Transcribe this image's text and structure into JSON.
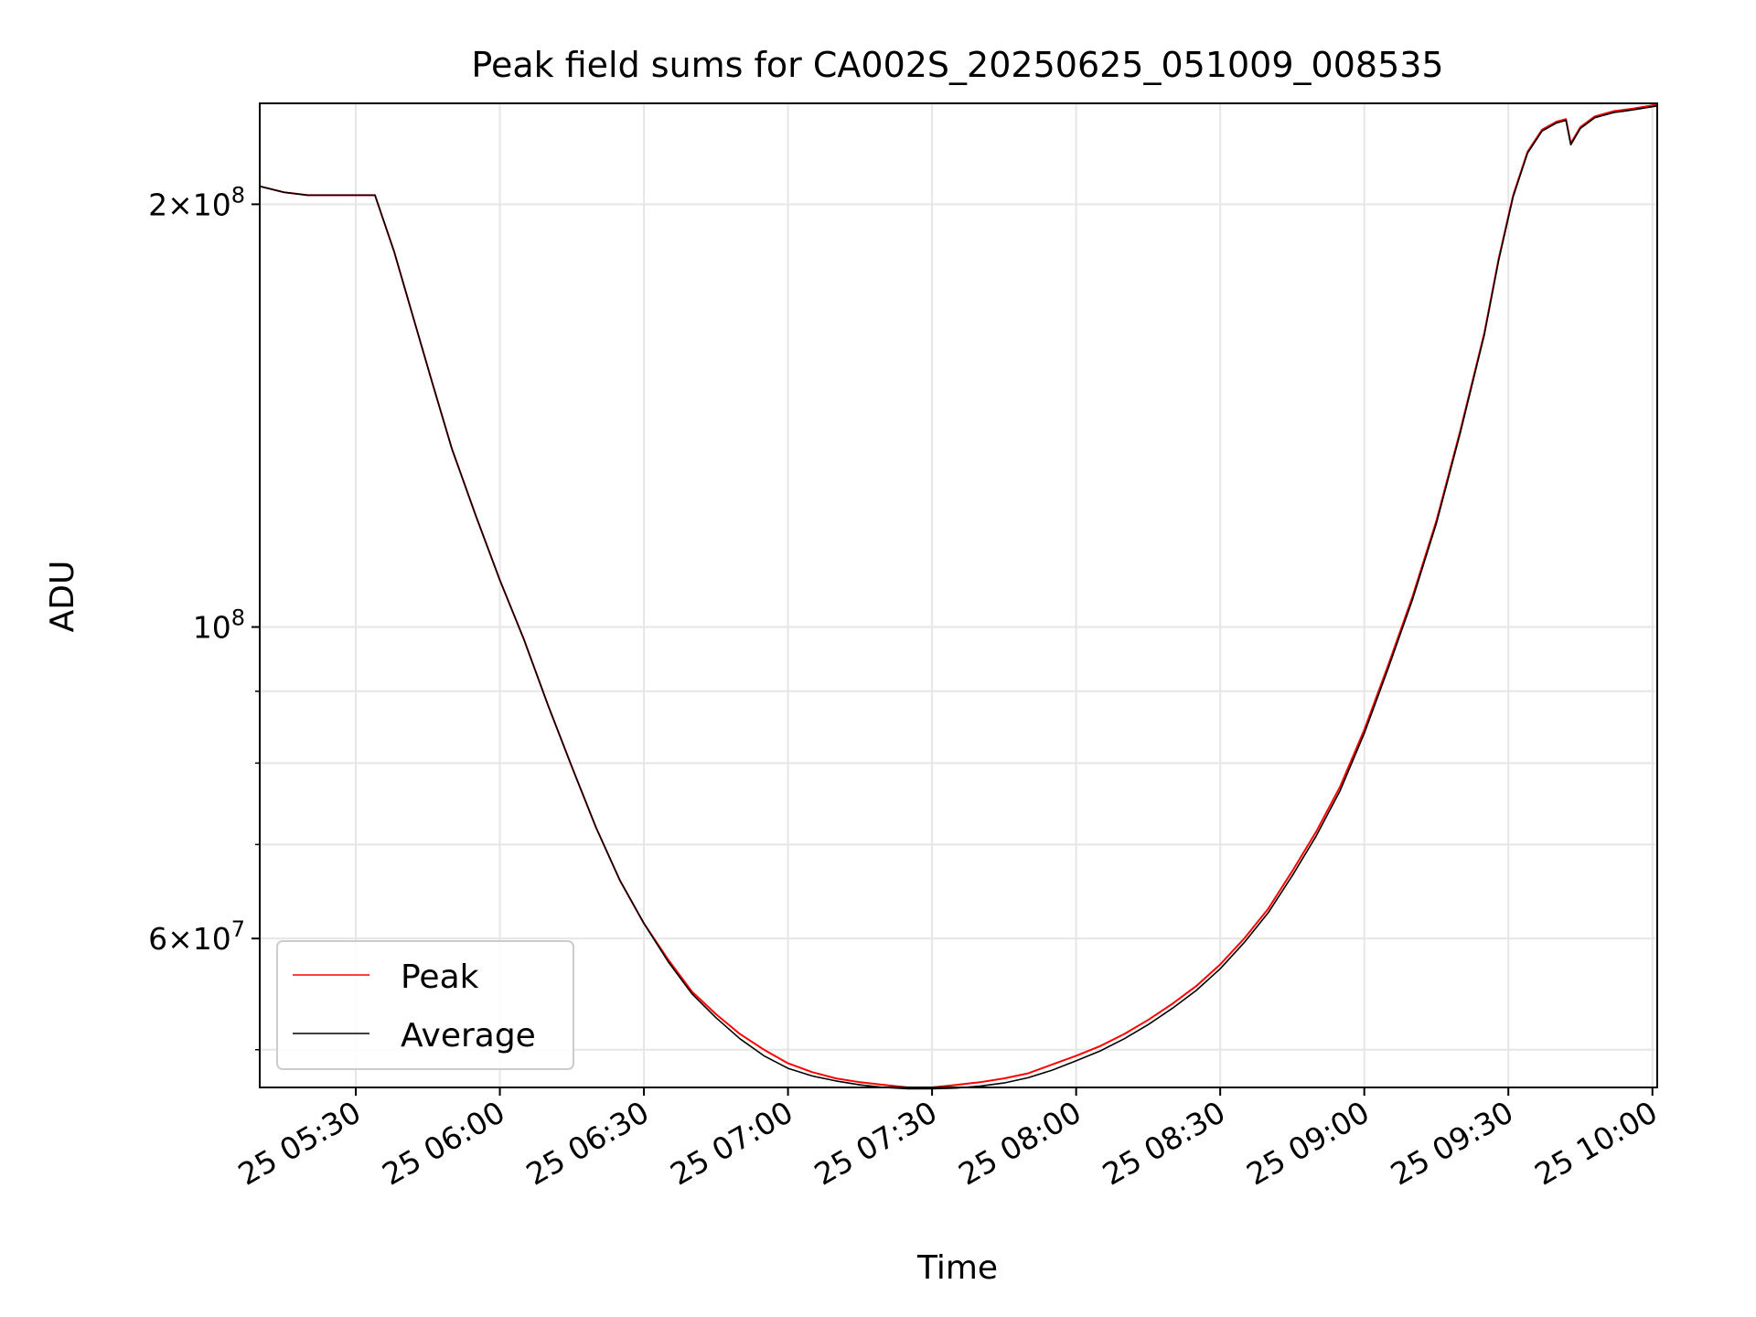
{
  "chart_data": {
    "type": "line",
    "title": "Peak field sums for CA002S_20250625_051009_008535",
    "xlabel": "Time",
    "ylabel": "ADU",
    "yscale": "log",
    "ylim": [
      47000000,
      236000000
    ],
    "xlim": [
      "2025-06-25 05:10:00",
      "2025-06-25 10:01:00"
    ],
    "grid": true,
    "legend": "lower-left",
    "x_tick_labels": [
      {
        "t": "2025-06-25 05:30",
        "label": "25 05:30"
      },
      {
        "t": "2025-06-25 06:00",
        "label": "25 06:00"
      },
      {
        "t": "2025-06-25 06:30",
        "label": "25 06:30"
      },
      {
        "t": "2025-06-25 07:00",
        "label": "25 07:00"
      },
      {
        "t": "2025-06-25 07:30",
        "label": "25 07:30"
      },
      {
        "t": "2025-06-25 08:00",
        "label": "25 08:00"
      },
      {
        "t": "2025-06-25 08:30",
        "label": "25 08:30"
      },
      {
        "t": "2025-06-25 09:00",
        "label": "25 09:00"
      },
      {
        "t": "2025-06-25 09:30",
        "label": "25 09:30"
      },
      {
        "t": "2025-06-25 10:00",
        "label": "25 10:00"
      }
    ],
    "y_major_ticks": [
      {
        "value": 200000000,
        "mantissa": "2",
        "exponent": "8"
      },
      {
        "value": 100000000,
        "mantissa": "",
        "exponent": "8"
      },
      {
        "value": 60000000,
        "mantissa": "6",
        "exponent": "7"
      }
    ],
    "y_minor_ticks": [
      50000000,
      70000000,
      80000000,
      90000000
    ],
    "series": [
      {
        "name": "Peak",
        "color": "#ff0000",
        "x": [
          "2025-06-25 05:10",
          "2025-06-25 05:15",
          "2025-06-25 05:20",
          "2025-06-25 05:25",
          "2025-06-25 05:30",
          "2025-06-25 05:34",
          "2025-06-25 05:38",
          "2025-06-25 05:42",
          "2025-06-25 05:46",
          "2025-06-25 05:50",
          "2025-06-25 05:55",
          "2025-06-25 06:00",
          "2025-06-25 06:05",
          "2025-06-25 06:10",
          "2025-06-25 06:15",
          "2025-06-25 06:20",
          "2025-06-25 06:25",
          "2025-06-25 06:30",
          "2025-06-25 06:35",
          "2025-06-25 06:40",
          "2025-06-25 06:45",
          "2025-06-25 06:50",
          "2025-06-25 06:55",
          "2025-06-25 07:00",
          "2025-06-25 07:05",
          "2025-06-25 07:10",
          "2025-06-25 07:15",
          "2025-06-25 07:20",
          "2025-06-25 07:25",
          "2025-06-25 07:30",
          "2025-06-25 07:35",
          "2025-06-25 07:40",
          "2025-06-25 07:45",
          "2025-06-25 07:50",
          "2025-06-25 07:55",
          "2025-06-25 08:00",
          "2025-06-25 08:05",
          "2025-06-25 08:10",
          "2025-06-25 08:15",
          "2025-06-25 08:20",
          "2025-06-25 08:25",
          "2025-06-25 08:30",
          "2025-06-25 08:35",
          "2025-06-25 08:40",
          "2025-06-25 08:45",
          "2025-06-25 08:50",
          "2025-06-25 08:55",
          "2025-06-25 09:00",
          "2025-06-25 09:05",
          "2025-06-25 09:10",
          "2025-06-25 09:15",
          "2025-06-25 09:20",
          "2025-06-25 09:25",
          "2025-06-25 09:28",
          "2025-06-25 09:31",
          "2025-06-25 09:34",
          "2025-06-25 09:37",
          "2025-06-25 09:40",
          "2025-06-25 09:42",
          "2025-06-25 09:43",
          "2025-06-25 09:45",
          "2025-06-25 09:48",
          "2025-06-25 09:52",
          "2025-06-25 09:56",
          "2025-06-25 10:01"
        ],
        "y": [
          206000000,
          204000000,
          203000000,
          203000000,
          203000000,
          203000000,
          185000000,
          166000000,
          149000000,
          134000000,
          120000000,
          108000000,
          98000000,
          88000000,
          79500000,
          72000000,
          66000000,
          61500000,
          58000000,
          55000000,
          53000000,
          51300000,
          50000000,
          48900000,
          48200000,
          47700000,
          47400000,
          47200000,
          47000000,
          47000000,
          47200000,
          47400000,
          47700000,
          48100000,
          48800000,
          49500000,
          50300000,
          51300000,
          52500000,
          53900000,
          55500000,
          57500000,
          60000000,
          63000000,
          67000000,
          71500000,
          77000000,
          84500000,
          94000000,
          105000000,
          119000000,
          138000000,
          162000000,
          183000000,
          203000000,
          218000000,
          226000000,
          229000000,
          230000000,
          221000000,
          227000000,
          231000000,
          233000000,
          234000000,
          235500000
        ]
      },
      {
        "name": "Average",
        "color": "#000000",
        "x": [
          "2025-06-25 05:10",
          "2025-06-25 05:15",
          "2025-06-25 05:20",
          "2025-06-25 05:25",
          "2025-06-25 05:30",
          "2025-06-25 05:34",
          "2025-06-25 05:38",
          "2025-06-25 05:42",
          "2025-06-25 05:46",
          "2025-06-25 05:50",
          "2025-06-25 05:55",
          "2025-06-25 06:00",
          "2025-06-25 06:05",
          "2025-06-25 06:10",
          "2025-06-25 06:15",
          "2025-06-25 06:20",
          "2025-06-25 06:25",
          "2025-06-25 06:30",
          "2025-06-25 06:35",
          "2025-06-25 06:40",
          "2025-06-25 06:45",
          "2025-06-25 06:50",
          "2025-06-25 06:55",
          "2025-06-25 07:00",
          "2025-06-25 07:05",
          "2025-06-25 07:10",
          "2025-06-25 07:15",
          "2025-06-25 07:20",
          "2025-06-25 07:25",
          "2025-06-25 07:30",
          "2025-06-25 07:35",
          "2025-06-25 07:40",
          "2025-06-25 07:45",
          "2025-06-25 07:50",
          "2025-06-25 07:55",
          "2025-06-25 08:00",
          "2025-06-25 08:05",
          "2025-06-25 08:10",
          "2025-06-25 08:15",
          "2025-06-25 08:20",
          "2025-06-25 08:25",
          "2025-06-25 08:30",
          "2025-06-25 08:35",
          "2025-06-25 08:40",
          "2025-06-25 08:45",
          "2025-06-25 08:50",
          "2025-06-25 08:55",
          "2025-06-25 09:00",
          "2025-06-25 09:05",
          "2025-06-25 09:10",
          "2025-06-25 09:15",
          "2025-06-25 09:20",
          "2025-06-25 09:25",
          "2025-06-25 09:28",
          "2025-06-25 09:31",
          "2025-06-25 09:34",
          "2025-06-25 09:37",
          "2025-06-25 09:40",
          "2025-06-25 09:42",
          "2025-06-25 09:43",
          "2025-06-25 09:45",
          "2025-06-25 09:48",
          "2025-06-25 09:52",
          "2025-06-25 09:56",
          "2025-06-25 10:01"
        ],
        "y": [
          206000000,
          204000000,
          203000000,
          203000000,
          203000000,
          203000000,
          185000000,
          166000000,
          149000000,
          134000000,
          120000000,
          108000000,
          98000000,
          88000000,
          79500000,
          72000000,
          66000000,
          61500000,
          57800000,
          54800000,
          52700000,
          50900000,
          49500000,
          48500000,
          47900000,
          47500000,
          47200000,
          47000000,
          46900000,
          46900000,
          46950000,
          47100000,
          47350000,
          47750000,
          48350000,
          49100000,
          49900000,
          50900000,
          52100000,
          53500000,
          55100000,
          57100000,
          59600000,
          62600000,
          66500000,
          71000000,
          76500000,
          84000000,
          93500000,
          104500000,
          118500000,
          137500000,
          161500000,
          182500000,
          202500000,
          217500000,
          225500000,
          228500000,
          229500000,
          220500000,
          226500000,
          230500000,
          232500000,
          233500000,
          235000000
        ]
      }
    ]
  }
}
